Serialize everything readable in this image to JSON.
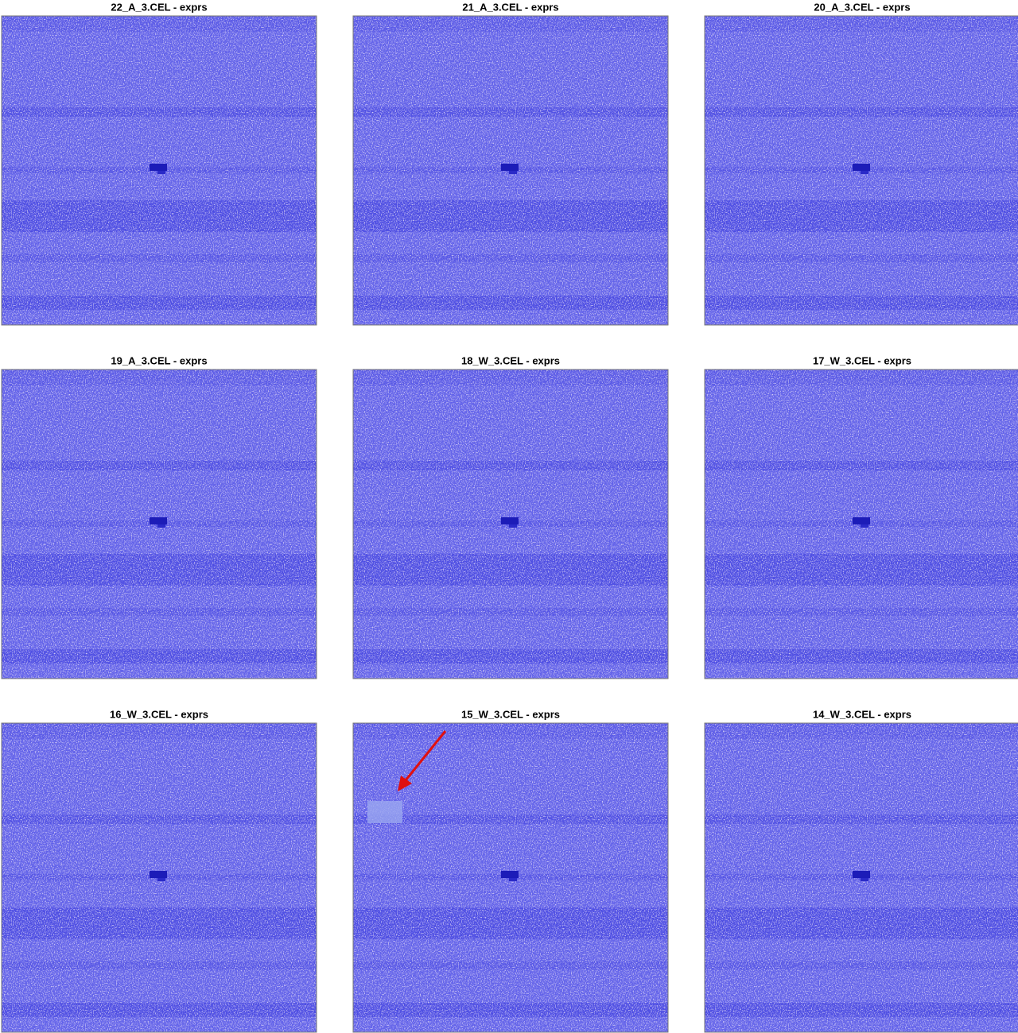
{
  "panels": [
    {
      "title": "22_A_3.CEL - exprs"
    },
    {
      "title": "21_A_3.CEL - exprs"
    },
    {
      "title": "20_A_3.CEL - exprs"
    },
    {
      "title": "19_A_3.CEL - exprs"
    },
    {
      "title": "18_W_3.CEL - exprs"
    },
    {
      "title": "17_W_3.CEL - exprs"
    },
    {
      "title": "16_W_3.CEL - exprs"
    },
    {
      "title": "15_W_3.CEL - exprs"
    },
    {
      "title": "14_W_3.CEL - exprs"
    }
  ]
}
